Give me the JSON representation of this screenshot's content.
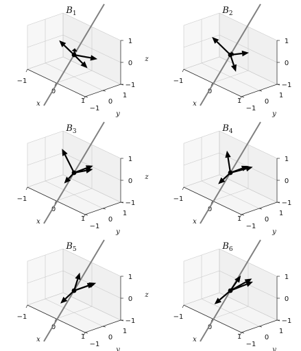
{
  "figure": {
    "panels": [
      {
        "title": "B",
        "subscript": "1",
        "tick_labels": {
          "x_neg": "−1",
          "x_zero": "0",
          "x_pos": "1",
          "y_neg": "−1",
          "y_zero": "0",
          "y_pos": "1",
          "z_neg": "−1",
          "z_zero": "0",
          "z_pos": "1"
        },
        "axis_labels": {
          "x": "x",
          "y": "y",
          "z": "z"
        },
        "vectors": [
          [
            -0.55,
            0.05,
            0.3
          ],
          [
            0.75,
            0.1,
            0.25
          ],
          [
            0.25,
            0.35,
            -0.55
          ],
          [
            0.15,
            -0.2,
            0.45
          ]
        ]
      },
      {
        "title": "B",
        "subscript": "2",
        "tick_labels": {
          "x_neg": "−1",
          "x_zero": "0",
          "x_pos": "1",
          "y_neg": "−1",
          "y_zero": "0",
          "y_pos": "1",
          "z_neg": "−1",
          "z_zero": "0",
          "z_pos": "1"
        },
        "axis_labels": {
          "x": "x",
          "y": "y",
          "z": "z"
        },
        "vectors": [
          [
            -0.7,
            0.1,
            0.35
          ],
          [
            0.55,
            0.15,
            0.4
          ],
          [
            0.1,
            0.15,
            -0.75
          ],
          [
            0.2,
            -0.15,
            0.25
          ]
        ]
      },
      {
        "title": "B",
        "subscript": "3",
        "tick_labels": {
          "x_neg": "−1",
          "x_zero": "0",
          "x_pos": "1",
          "y_neg": "−1",
          "y_zero": "0",
          "y_pos": "1",
          "z_neg": "−1",
          "z_zero": "0",
          "z_pos": "1"
        },
        "axis_labels": {
          "x": "x",
          "y": "y",
          "z": "z"
        },
        "vectors": [
          [
            -0.45,
            0.05,
            0.8
          ],
          [
            0.5,
            0.25,
            0.4
          ],
          [
            -0.25,
            -0.15,
            -0.6
          ],
          [
            0.35,
            0.5,
            0.4
          ]
        ]
      },
      {
        "title": "B",
        "subscript": "4",
        "tick_labels": {
          "x_neg": "−1",
          "x_zero": "0",
          "x_pos": "1",
          "y_neg": "−1",
          "y_zero": "0",
          "y_pos": "1",
          "z_neg": "−1",
          "z_zero": "0",
          "z_pos": "1"
        },
        "axis_labels": {
          "x": "x",
          "y": "y",
          "z": "z"
        },
        "vectors": [
          [
            -0.15,
            0.05,
            0.9
          ],
          [
            0.45,
            0.3,
            0.5
          ],
          [
            -0.3,
            -0.2,
            -0.65
          ],
          [
            0.5,
            0.45,
            0.45
          ]
        ]
      },
      {
        "title": "B",
        "subscript": "5",
        "tick_labels": {
          "x_neg": "−1",
          "x_zero": "0",
          "x_pos": "1",
          "y_neg": "−1",
          "y_zero": "0",
          "y_pos": "1",
          "z_neg": "−1",
          "z_zero": "0",
          "z_pos": "1"
        },
        "axis_labels": {
          "x": "x",
          "y": "y",
          "z": "z"
        },
        "vectors": [
          [
            0.2,
            0.0,
            0.95
          ],
          [
            0.55,
            0.25,
            0.6
          ],
          [
            -0.35,
            -0.2,
            -0.75
          ],
          [
            0.55,
            0.35,
            0.6
          ]
        ]
      },
      {
        "title": "B",
        "subscript": "6",
        "tick_labels": {
          "x_neg": "−1",
          "x_zero": "0",
          "x_pos": "1",
          "y_neg": "−1",
          "y_zero": "0",
          "y_pos": "1",
          "z_neg": "−1",
          "z_zero": "0",
          "z_pos": "1"
        },
        "axis_labels": {
          "x": "x",
          "y": "y",
          "z": "z"
        },
        "vectors": [
          [
            0.3,
            0.1,
            0.85
          ],
          [
            0.6,
            0.3,
            0.7
          ],
          [
            -0.4,
            -0.25,
            -0.8
          ],
          [
            0.5,
            0.4,
            0.75
          ]
        ]
      }
    ]
  },
  "colors": {
    "line": "#808080",
    "vector": "#000000",
    "pane": "#f0f0f0",
    "grid": "#c8c8c8"
  }
}
